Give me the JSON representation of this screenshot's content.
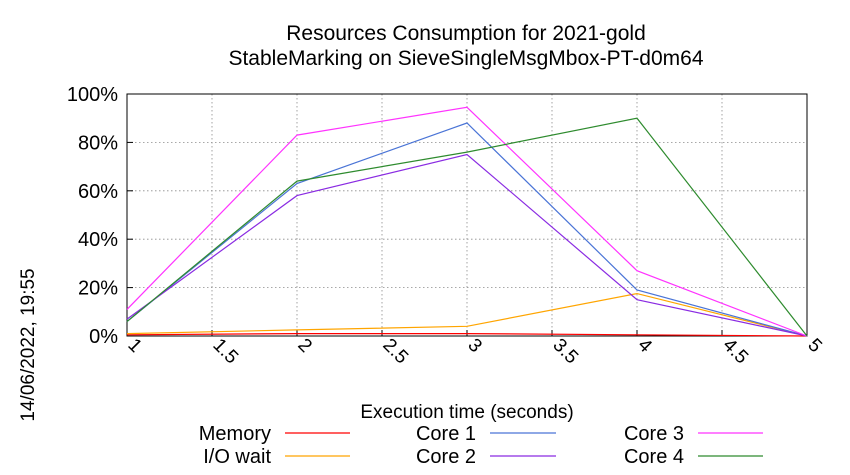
{
  "chart_data": {
    "type": "line",
    "title_lines": [
      "Resources Consumption for 2021-gold",
      "StableMarking on SieveSingleMsgMbox-PT-d0m64"
    ],
    "xlabel": "Execution time (seconds)",
    "ylabel": "",
    "side_label": "14/06/2022, 19:55",
    "xlim": [
      1,
      5
    ],
    "ylim": [
      0,
      100
    ],
    "x_ticks": [
      "1",
      "1.5",
      "2",
      "2.5",
      "3",
      "3.5",
      "4",
      "4.5",
      "5"
    ],
    "y_ticks": [
      "0%",
      "20%",
      "40%",
      "60%",
      "80%",
      "100%"
    ],
    "grid": true,
    "legend_position": "bottom",
    "series": [
      {
        "name": "Memory",
        "color": "#ff0000",
        "points": [
          [
            1,
            0.5
          ],
          [
            2,
            1
          ],
          [
            3,
            1
          ],
          [
            4,
            0.5
          ],
          [
            5,
            0
          ]
        ]
      },
      {
        "name": "I/O wait",
        "color": "#ffa500",
        "points": [
          [
            1,
            1
          ],
          [
            2,
            2.5
          ],
          [
            3,
            4
          ],
          [
            4,
            17.5
          ],
          [
            5,
            0
          ]
        ]
      },
      {
        "name": "Core 1",
        "color": "#4a74d6",
        "points": [
          [
            1,
            6
          ],
          [
            2,
            63
          ],
          [
            3,
            88
          ],
          [
            4,
            19
          ],
          [
            5,
            0
          ]
        ]
      },
      {
        "name": "Core 2",
        "color": "#8a2be2",
        "points": [
          [
            1,
            7
          ],
          [
            2,
            58
          ],
          [
            3,
            75
          ],
          [
            4,
            15
          ],
          [
            5,
            0
          ]
        ]
      },
      {
        "name": "Core 3",
        "color": "#ff33ff",
        "points": [
          [
            1,
            11
          ],
          [
            2,
            83
          ],
          [
            3,
            94.5
          ],
          [
            4,
            27
          ],
          [
            5,
            0
          ]
        ]
      },
      {
        "name": "Core 4",
        "color": "#2e8b2e",
        "points": [
          [
            1,
            6
          ],
          [
            2,
            64
          ],
          [
            3,
            76
          ],
          [
            4,
            90
          ],
          [
            5,
            0
          ]
        ]
      }
    ]
  }
}
